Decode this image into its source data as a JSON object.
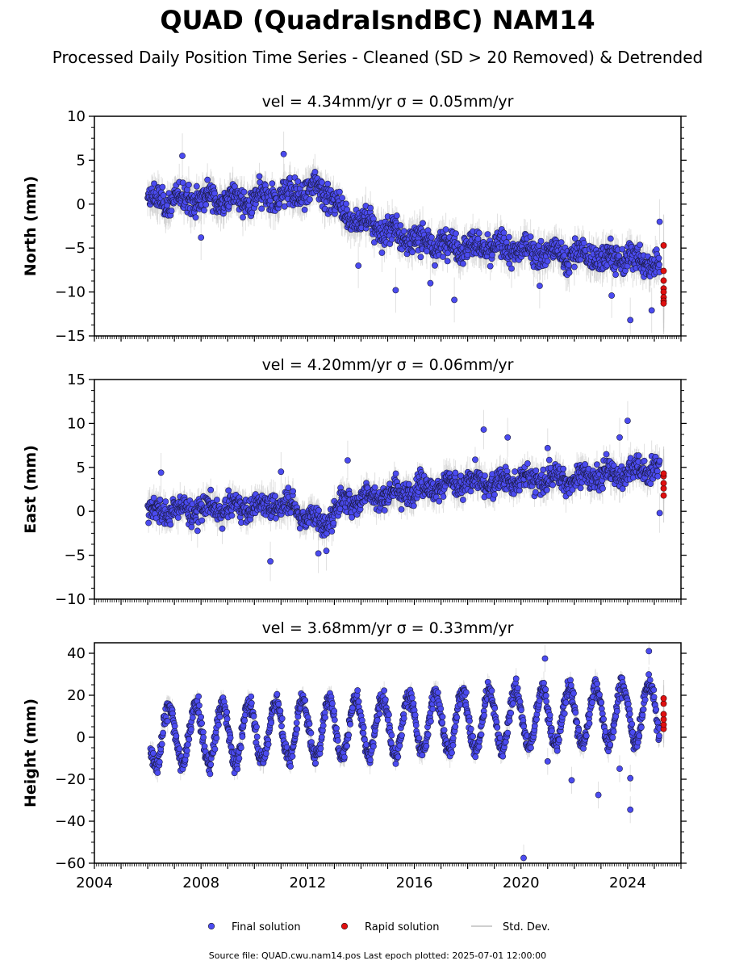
{
  "title": "QUAD (QuadraIsndBC) NAM14",
  "subtitle": "Processed Daily Position Time Series - Cleaned (SD > 20 Removed) & Detrended",
  "footer": "Source file: QUAD.cwu.nam14.pos  Last epoch plotted: 2025-07-01 12:00:00",
  "colors": {
    "final": "#4b4bf0",
    "final_edge": "#1a1a40",
    "rapid": "#e01010",
    "stddev": "#c8c8c8"
  },
  "legend": [
    {
      "label": "Final solution",
      "marker": "dot",
      "color": "#4b4bf0"
    },
    {
      "label": "Rapid solution",
      "marker": "dot",
      "color": "#e01010"
    },
    {
      "label": "Std. Dev.",
      "marker": "line",
      "color": "#c8c8c8"
    }
  ],
  "chart_data": [
    {
      "type": "scatter",
      "panel_title": "vel = 4.34mm/yr   σ = 0.05mm/yr",
      "ylabel": "North (mm)",
      "xlim": [
        2004,
        2026
      ],
      "ylim": [
        -15,
        10
      ],
      "xticks": [
        2004,
        2008,
        2012,
        2016,
        2020,
        2024
      ],
      "yticks": [
        -15,
        -10,
        -5,
        0,
        5,
        10
      ],
      "show_xtick_labels": false,
      "final_trend": [
        [
          2006.0,
          0.2
        ],
        [
          2008.0,
          0.8
        ],
        [
          2010.0,
          0.3
        ],
        [
          2011.3,
          1.0
        ],
        [
          2012.5,
          2.0
        ],
        [
          2013.5,
          -1.5
        ],
        [
          2015.0,
          -3.0
        ],
        [
          2016.5,
          -4.5
        ],
        [
          2018.0,
          -4.8
        ],
        [
          2020.0,
          -5.2
        ],
        [
          2022.0,
          -5.8
        ],
        [
          2024.0,
          -6.2
        ],
        [
          2025.2,
          -7.0
        ]
      ],
      "final_spread": 1.8,
      "final_stddev": 1.6,
      "final_outliers": [
        [
          2007.3,
          5.5
        ],
        [
          2008.0,
          -3.8
        ],
        [
          2011.1,
          5.7
        ],
        [
          2013.9,
          -7.0
        ],
        [
          2015.3,
          -9.8
        ],
        [
          2016.6,
          -9.0
        ],
        [
          2017.5,
          -10.9
        ],
        [
          2020.7,
          -9.3
        ],
        [
          2023.4,
          -10.4
        ],
        [
          2024.1,
          -13.2
        ],
        [
          2024.9,
          -12.1
        ],
        [
          2025.2,
          -2.0
        ]
      ],
      "rapid_x": 2025.35,
      "rapid_y": [
        -4.7,
        -7.6,
        -8.7,
        -9.6,
        -10.0,
        -10.6,
        -11.0,
        -11.3
      ]
    },
    {
      "type": "scatter",
      "panel_title": "vel = 4.20mm/yr   σ = 0.06mm/yr",
      "ylabel": "East (mm)",
      "xlim": [
        2004,
        2026
      ],
      "ylim": [
        -10,
        15
      ],
      "xticks": [
        2004,
        2008,
        2012,
        2016,
        2020,
        2024
      ],
      "yticks": [
        -10,
        -5,
        0,
        5,
        10,
        15
      ],
      "show_xtick_labels": false,
      "final_trend": [
        [
          2006.0,
          0.0
        ],
        [
          2008.0,
          0.2
        ],
        [
          2010.0,
          0.5
        ],
        [
          2011.3,
          0.8
        ],
        [
          2012.5,
          -1.5
        ],
        [
          2013.5,
          1.2
        ],
        [
          2015.0,
          2.0
        ],
        [
          2016.5,
          2.8
        ],
        [
          2018.0,
          3.2
        ],
        [
          2020.0,
          3.5
        ],
        [
          2022.0,
          3.8
        ],
        [
          2024.0,
          4.5
        ],
        [
          2025.2,
          5.0
        ]
      ],
      "final_spread": 1.6,
      "final_stddev": 1.4,
      "final_outliers": [
        [
          2006.5,
          4.4
        ],
        [
          2010.6,
          -5.7
        ],
        [
          2011.0,
          4.5
        ],
        [
          2012.4,
          -4.8
        ],
        [
          2012.7,
          -4.5
        ],
        [
          2013.5,
          5.8
        ],
        [
          2018.6,
          9.3
        ],
        [
          2019.5,
          8.4
        ],
        [
          2021.0,
          7.2
        ],
        [
          2023.7,
          8.4
        ],
        [
          2024.0,
          10.3
        ],
        [
          2025.2,
          -0.2
        ]
      ],
      "rapid_x": 2025.35,
      "rapid_y": [
        1.8,
        2.6,
        3.2,
        4.0,
        4.3
      ]
    },
    {
      "type": "scatter",
      "panel_title": "vel = 3.68mm/yr   σ = 0.33mm/yr",
      "ylabel": "Height (mm)",
      "xlim": [
        2004,
        2026
      ],
      "ylim": [
        -60,
        45
      ],
      "xticks": [
        2004,
        2008,
        2012,
        2016,
        2020,
        2024
      ],
      "yticks": [
        -60,
        -40,
        -20,
        0,
        20,
        40
      ],
      "show_xtick_labels": true,
      "seasonal": {
        "start": 2006.1,
        "end": 2025.2,
        "mean_start": 0.0,
        "mean_end": 12.0,
        "amplitude": 14.0,
        "phase": 0.55
      },
      "final_spread": 5.0,
      "final_stddev": 4.0,
      "final_outliers": [
        [
          2020.1,
          -57.5
        ],
        [
          2024.1,
          -34.5
        ],
        [
          2022.9,
          -27.5
        ],
        [
          2021.9,
          -20.5
        ],
        [
          2024.1,
          -19.5
        ],
        [
          2023.7,
          -15.0
        ],
        [
          2021.0,
          -11.5
        ],
        [
          2024.8,
          41.0
        ],
        [
          2020.9,
          37.5
        ]
      ],
      "rapid_x": 2025.35,
      "rapid_y": [
        4.0,
        6.0,
        8.5,
        11.0,
        16.0,
        18.5
      ]
    }
  ]
}
